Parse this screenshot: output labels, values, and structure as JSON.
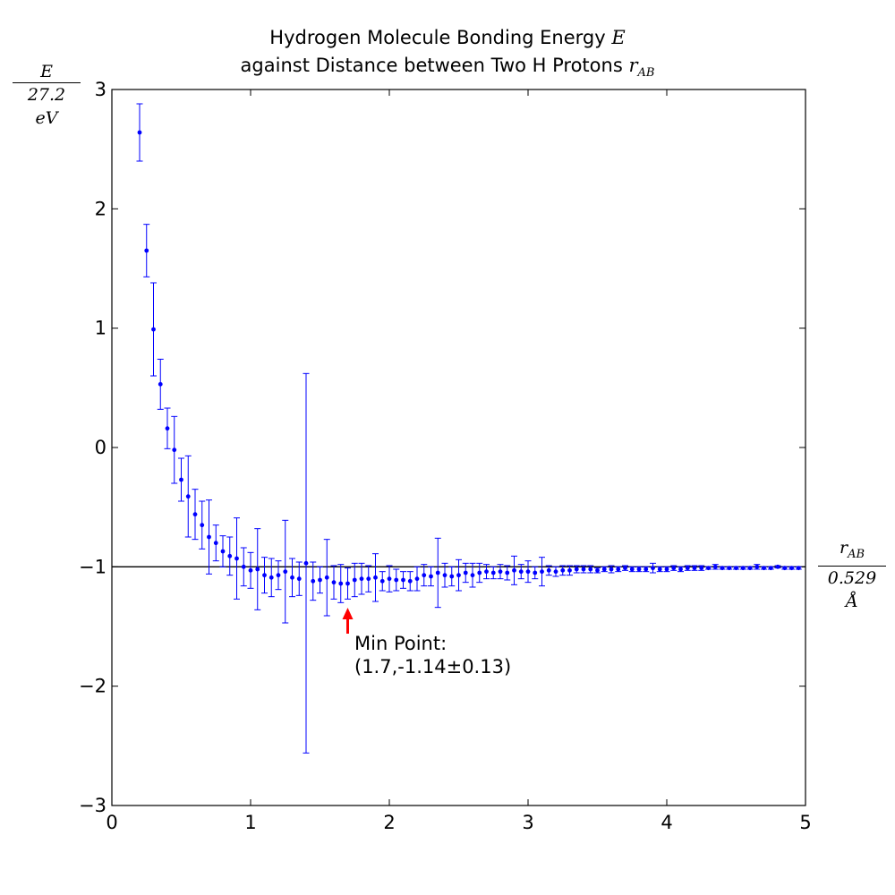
{
  "chart_data": {
    "type": "scatter",
    "title_line1_text": "Hydrogen Molecule Bonding Energy ",
    "title_line1_symbol": "E",
    "title_line2_text": "against Distance between Two H Protons ",
    "title_line2_symbol": "r",
    "title_line2_subscript": "AB",
    "ylabel_numerator": "E",
    "ylabel_denominator": "27.2 eV",
    "xlabel_numerator": "r",
    "xlabel_numerator_subscript": "AB",
    "xlabel_denominator": "0.529 Å",
    "xlim": [
      0,
      5
    ],
    "ylim": [
      -3,
      3
    ],
    "xticks": [
      "0",
      "1",
      "2",
      "3",
      "4",
      "5"
    ],
    "yticks": [
      "3",
      "2",
      "1",
      "0",
      "−1",
      "−2",
      "−3"
    ],
    "reference_line_y": -1,
    "marker_color": "#0000ff",
    "annotation": {
      "text_line1": "Min Point:",
      "text_line2": "(1.7,-1.14±0.13)",
      "arrow_color": "#ff0000",
      "point": [
        1.7,
        -1.14
      ]
    },
    "series": [
      {
        "x": [
          0.2,
          0.25,
          0.3,
          0.35,
          0.4,
          0.45,
          0.5,
          0.55,
          0.6,
          0.65,
          0.7,
          0.75,
          0.8,
          0.85,
          0.9,
          0.95,
          1.0,
          1.05,
          1.1,
          1.15,
          1.2,
          1.25,
          1.3,
          1.35,
          1.4,
          1.45,
          1.5,
          1.55,
          1.6,
          1.65,
          1.7,
          1.75,
          1.8,
          1.85,
          1.9,
          1.95,
          2.0,
          2.05,
          2.1,
          2.15,
          2.2,
          2.25,
          2.3,
          2.35,
          2.4,
          2.45,
          2.5,
          2.55,
          2.6,
          2.65,
          2.7,
          2.75,
          2.8,
          2.85,
          2.9,
          2.95,
          3.0,
          3.05,
          3.1,
          3.15,
          3.2,
          3.25,
          3.3,
          3.35,
          3.4,
          3.45,
          3.5,
          3.55,
          3.6,
          3.65,
          3.7,
          3.75,
          3.8,
          3.85,
          3.9,
          3.95,
          4.0,
          4.05,
          4.1,
          4.15,
          4.2,
          4.25,
          4.3,
          4.35,
          4.4,
          4.45,
          4.5,
          4.55,
          4.6,
          4.65,
          4.7,
          4.75,
          4.8,
          4.85,
          4.9,
          4.95
        ],
        "y": [
          2.64,
          1.65,
          0.99,
          0.53,
          0.16,
          -0.02,
          -0.27,
          -0.41,
          -0.56,
          -0.65,
          -0.75,
          -0.8,
          -0.87,
          -0.91,
          -0.93,
          -1.0,
          -1.03,
          -1.02,
          -1.07,
          -1.09,
          -1.07,
          -1.04,
          -1.09,
          -1.1,
          -0.97,
          -1.12,
          -1.11,
          -1.09,
          -1.13,
          -1.14,
          -1.14,
          -1.11,
          -1.1,
          -1.1,
          -1.09,
          -1.12,
          -1.1,
          -1.11,
          -1.11,
          -1.12,
          -1.1,
          -1.07,
          -1.08,
          -1.05,
          -1.07,
          -1.08,
          -1.07,
          -1.05,
          -1.07,
          -1.05,
          -1.04,
          -1.05,
          -1.04,
          -1.05,
          -1.03,
          -1.04,
          -1.04,
          -1.05,
          -1.04,
          -1.03,
          -1.04,
          -1.03,
          -1.03,
          -1.02,
          -1.02,
          -1.02,
          -1.03,
          -1.02,
          -1.02,
          -1.02,
          -1.01,
          -1.02,
          -1.02,
          -1.02,
          -1.01,
          -1.02,
          -1.02,
          -1.01,
          -1.02,
          -1.01,
          -1.01,
          -1.01,
          -1.01,
          -1.0,
          -1.01,
          -1.01,
          -1.01,
          -1.01,
          -1.01,
          -1.0,
          -1.01,
          -1.01,
          -1.0,
          -1.01,
          -1.01,
          -1.01
        ],
        "yerr": [
          0.24,
          0.22,
          0.39,
          0.21,
          0.17,
          0.28,
          0.18,
          0.34,
          0.21,
          0.2,
          0.31,
          0.15,
          0.13,
          0.16,
          0.34,
          0.16,
          0.15,
          0.34,
          0.15,
          0.16,
          0.12,
          0.43,
          0.16,
          0.14,
          1.59,
          0.16,
          0.11,
          0.32,
          0.14,
          0.16,
          0.13,
          0.14,
          0.13,
          0.11,
          0.2,
          0.08,
          0.11,
          0.09,
          0.07,
          0.08,
          0.1,
          0.09,
          0.08,
          0.29,
          0.1,
          0.08,
          0.13,
          0.08,
          0.1,
          0.08,
          0.06,
          0.05,
          0.06,
          0.06,
          0.12,
          0.06,
          0.09,
          0.05,
          0.12,
          0.04,
          0.04,
          0.04,
          0.04,
          0.03,
          0.03,
          0.03,
          0.02,
          0.02,
          0.03,
          0.02,
          0.02,
          0.02,
          0.02,
          0.02,
          0.04,
          0.02,
          0.02,
          0.02,
          0.02,
          0.02,
          0.02,
          0.02,
          0.01,
          0.02,
          0.01,
          0.01,
          0.01,
          0.01,
          0.01,
          0.02,
          0.01,
          0.01,
          0.01,
          0.01,
          0.01,
          0.01
        ]
      }
    ]
  }
}
